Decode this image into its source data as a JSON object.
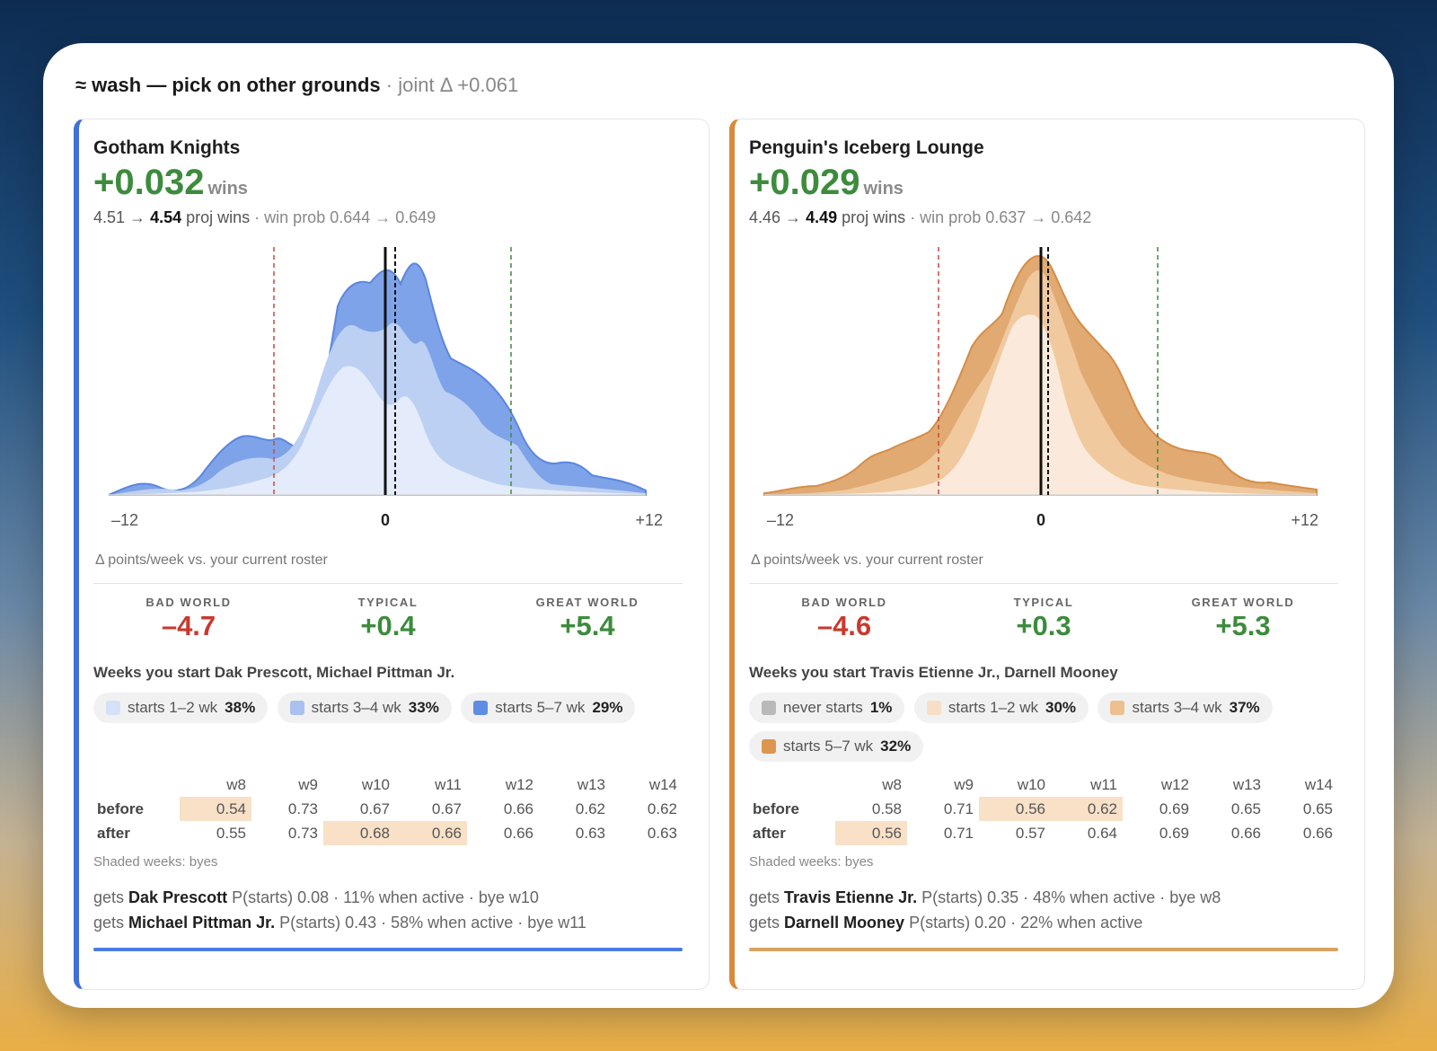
{
  "header": {
    "verdict": "≈ wash — pick on other grounds",
    "joint": " · joint Δ +0.061"
  },
  "panels": [
    {
      "team": "Gotham Knights",
      "delta": "+0.032",
      "delta_unit": "wins",
      "proj_before": "4.51 →",
      "proj_after": "4.54",
      "proj_unit": "proj wins",
      "winprob": "· win prob 0.644 → 0.649",
      "axis_labels": [
        "–12",
        "0",
        "+12"
      ],
      "axis_caption": "Δ points/week vs. your current roster",
      "worlds": [
        {
          "label": "BAD WORLD",
          "value": "–4.7",
          "color": "#c9392e"
        },
        {
          "label": "TYPICAL",
          "value": "+0.4",
          "color": "#3d8b3d"
        },
        {
          "label": "GREAT WORLD",
          "value": "+5.4",
          "color": "#3d8b3d"
        }
      ],
      "weeks_title": "Weeks you start Dak Prescott, Michael Pittman Jr.",
      "chips": [
        {
          "label": "starts 1–2 wk",
          "pct": "38%",
          "color": "#d5e1f6"
        },
        {
          "label": "starts 3–4 wk",
          "pct": "33%",
          "color": "#a8c1ef"
        },
        {
          "label": "starts 5–7 wk",
          "pct": "29%",
          "color": "#5f8de3"
        }
      ],
      "table": {
        "weeks": [
          "w8",
          "w9",
          "w10",
          "w11",
          "w12",
          "w13",
          "w14"
        ],
        "before_label": "before",
        "after_label": "after",
        "before": [
          "0.54",
          "0.73",
          "0.67",
          "0.67",
          "0.66",
          "0.62",
          "0.62"
        ],
        "after": [
          "0.55",
          "0.73",
          "0.68",
          "0.66",
          "0.66",
          "0.63",
          "0.63"
        ],
        "before_bye": [
          true,
          false,
          false,
          false,
          false,
          false,
          false
        ],
        "after_bye": [
          false,
          false,
          true,
          true,
          false,
          false,
          false
        ]
      },
      "shaded_note": "Shaded weeks: byes",
      "gets": [
        {
          "prefix": "gets",
          "player": "Dak Prescott",
          "detail": "P(starts) 0.08 · 11% when active · bye w10"
        },
        {
          "prefix": "gets",
          "player": "Michael Pittman Jr.",
          "detail": "P(starts) 0.43 · 58% when active · bye w11"
        }
      ],
      "accent": "#4b7be0"
    },
    {
      "team": "Penguin's Iceberg Lounge",
      "delta": "+0.029",
      "delta_unit": "wins",
      "proj_before": "4.46 →",
      "proj_after": "4.49",
      "proj_unit": "proj wins",
      "winprob": "· win prob 0.637 → 0.642",
      "axis_labels": [
        "–12",
        "0",
        "+12"
      ],
      "axis_caption": "Δ points/week vs. your current roster",
      "worlds": [
        {
          "label": "BAD WORLD",
          "value": "–4.6",
          "color": "#c9392e"
        },
        {
          "label": "TYPICAL",
          "value": "+0.3",
          "color": "#3d8b3d"
        },
        {
          "label": "GREAT WORLD",
          "value": "+5.3",
          "color": "#3d8b3d"
        }
      ],
      "weeks_title": "Weeks you start Travis Etienne Jr., Darnell Mooney",
      "chips": [
        {
          "label": "never starts",
          "pct": "1%",
          "color": "#b9b9b9"
        },
        {
          "label": "starts 1–2 wk",
          "pct": "30%",
          "color": "#f6dfc6"
        },
        {
          "label": "starts 3–4 wk",
          "pct": "37%",
          "color": "#ecc08f"
        },
        {
          "label": "starts 5–7 wk",
          "pct": "32%",
          "color": "#dd964f"
        }
      ],
      "table": {
        "weeks": [
          "w8",
          "w9",
          "w10",
          "w11",
          "w12",
          "w13",
          "w14"
        ],
        "before_label": "before",
        "after_label": "after",
        "before": [
          "0.58",
          "0.71",
          "0.56",
          "0.62",
          "0.69",
          "0.65",
          "0.65"
        ],
        "after": [
          "0.56",
          "0.71",
          "0.57",
          "0.64",
          "0.69",
          "0.66",
          "0.66"
        ],
        "before_bye": [
          false,
          false,
          true,
          true,
          false,
          false,
          false
        ],
        "after_bye": [
          true,
          false,
          false,
          false,
          false,
          false,
          false
        ]
      },
      "shaded_note": "Shaded weeks: byes",
      "gets": [
        {
          "prefix": "gets",
          "player": "Travis Etienne Jr.",
          "detail": "P(starts) 0.35 · 48% when active · bye w8"
        },
        {
          "prefix": "gets",
          "player": "Darnell Mooney",
          "detail": "P(starts) 0.20 · 22% when active"
        }
      ],
      "accent": "#d9a261"
    }
  ]
}
